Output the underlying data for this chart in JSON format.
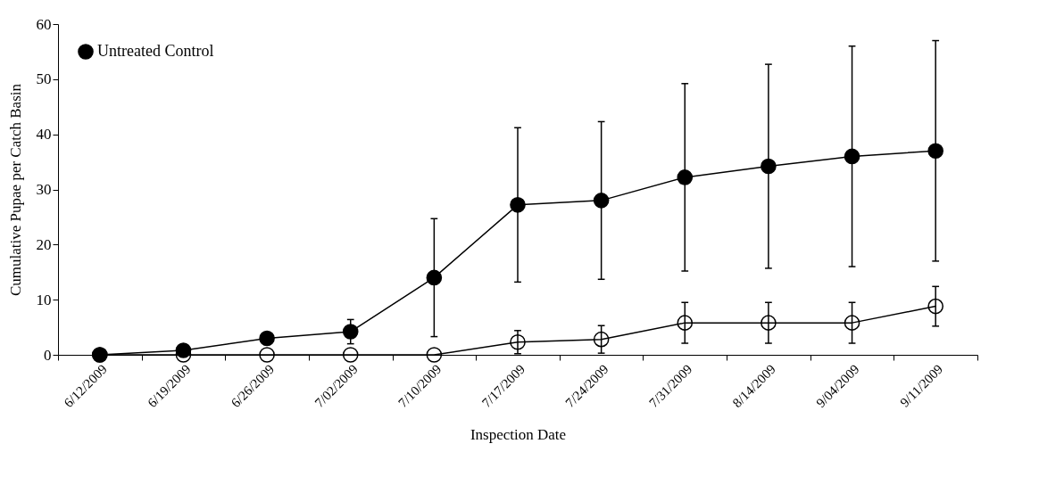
{
  "chart_data": {
    "type": "line",
    "xlabel": "Inspection Date",
    "ylabel": "Cumulative Pupae per Catch Basin",
    "categories": [
      "6/12/2009",
      "6/19/2009",
      "6/26/2009",
      "7/02/2009",
      "7/10/2009",
      "7/17/2009",
      "7/24/2009",
      "7/31/2009",
      "8/14/2009",
      "9/04/2009",
      "9/11/2009"
    ],
    "series": [
      {
        "name": "Untreated Control",
        "color": "#000000",
        "values": [
          0,
          0.8,
          3,
          4.2,
          14,
          27.2,
          28,
          32.2,
          34.2,
          36,
          37
        ],
        "errors": [
          null,
          null,
          1,
          2.2,
          10.7,
          14,
          14.3,
          17,
          18.5,
          20,
          20
        ]
      },
      {
        "color": "#000000",
        "values": [
          0,
          0,
          0,
          0,
          0,
          2.3,
          2.8,
          5.8,
          5.8,
          5.8,
          8.8
        ],
        "errors": [
          null,
          null,
          null,
          null,
          null,
          2.1,
          2.5,
          3.7,
          3.7,
          3.7,
          3.6
        ]
      }
    ],
    "ylim": [
      0,
      60
    ],
    "yticks": [
      0,
      10,
      20,
      30,
      40,
      50,
      60
    ],
    "grid": false,
    "legend": "top left",
    "marker": "circle",
    "line_style": "solid"
  }
}
